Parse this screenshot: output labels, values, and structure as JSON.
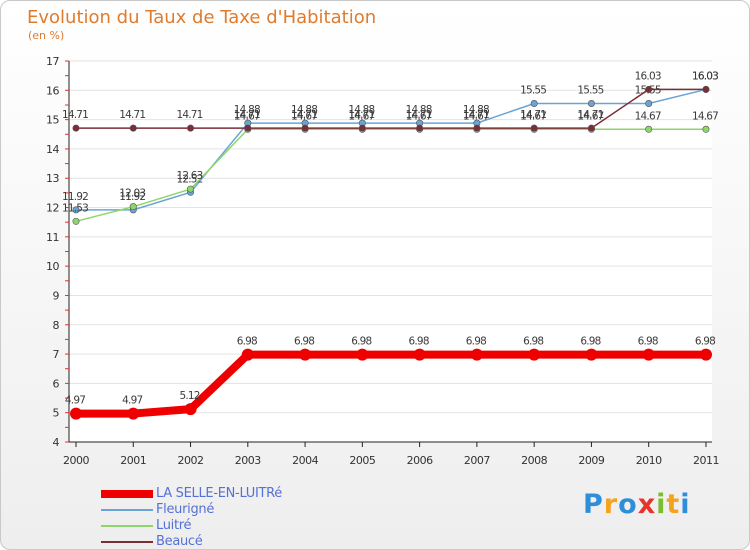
{
  "header": {
    "title": "Evolution du Taux de Taxe d'Habitation",
    "unit": "(en %)"
  },
  "logo": {
    "letters": [
      "P",
      "r",
      "o",
      "x",
      "i",
      "t",
      "i"
    ],
    "colors": [
      "#2f8ed8",
      "#f4a31c",
      "#2f8ed8",
      "#e5342a",
      "#7cbf2e",
      "#f4a31c",
      "#2f8ed8"
    ]
  },
  "chart_data": {
    "type": "line",
    "title": "Evolution du Taux de Taxe d'Habitation",
    "ylabel": "(en %)",
    "xlabel": "",
    "ylim": [
      4,
      17
    ],
    "yticks": [
      4,
      5,
      6,
      7,
      8,
      9,
      10,
      11,
      12,
      13,
      14,
      15,
      16,
      17
    ],
    "categories": [
      "2000",
      "2001",
      "2002",
      "2003",
      "2004",
      "2005",
      "2006",
      "2007",
      "2008",
      "2009",
      "2010",
      "2011"
    ],
    "series": [
      {
        "name": "LA SELLE-EN-LUITRé",
        "color": "#ee0000",
        "values": [
          4.97,
          4.97,
          5.12,
          6.98,
          6.98,
          6.98,
          6.98,
          6.98,
          6.98,
          6.98,
          6.98,
          6.98
        ],
        "labels": [
          "4.97",
          "4.97",
          "5.12",
          "6.98",
          "6.98",
          "6.98",
          "6.98",
          "6.98",
          "6.98",
          "6.98",
          "6.98",
          "6.98"
        ]
      },
      {
        "name": "Fleurigné",
        "color": "#6aa4d6",
        "values": [
          11.92,
          11.92,
          12.52,
          14.88,
          14.88,
          14.88,
          14.88,
          14.88,
          15.55,
          15.55,
          15.55,
          16.03
        ],
        "labels": [
          "11.92",
          "11.92",
          "12.52",
          "14.88",
          "14.88",
          "14.88",
          "14.88",
          "14.88",
          "15.55",
          "15.55",
          "15.55",
          "16.03"
        ]
      },
      {
        "name": "Luitré",
        "color": "#8ed66a",
        "values": [
          11.53,
          12.03,
          12.63,
          14.67,
          14.67,
          14.67,
          14.67,
          14.67,
          14.67,
          14.67,
          14.67,
          14.67
        ],
        "labels": [
          "11.53",
          "12.03",
          "12.63",
          "14.67",
          "14.67",
          "14.67",
          "14.67",
          "14.67",
          "14.67",
          "14.67",
          "14.67",
          "14.67"
        ]
      },
      {
        "name": "Beaucé",
        "color": "#7a2e36",
        "values": [
          14.71,
          14.71,
          14.71,
          14.71,
          14.71,
          14.71,
          14.71,
          14.71,
          14.71,
          14.71,
          16.03,
          16.03
        ],
        "labels": [
          "14.71",
          "14.71",
          "14.71",
          "14.71",
          "14.71",
          "14.71",
          "14.71",
          "14.71",
          "14.71",
          "14.71",
          "16.03",
          "16.03"
        ]
      }
    ]
  }
}
